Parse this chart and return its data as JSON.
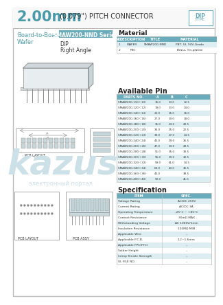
{
  "title_large": "2.00mm",
  "title_small": "(0.079\") PITCH CONNECTOR",
  "series_label": "SMAW200-NND Series",
  "application_line1": "Board-to-Board",
  "application_line2": "Wafer",
  "type1": "DIP",
  "type2": "Right Angle",
  "material_title": "Material",
  "material_headers": [
    "NO.",
    "DESCRIPTION",
    "TITLE",
    "MATERIAL"
  ],
  "material_rows": [
    [
      "1",
      "WAFER",
      "SMAW200-NND",
      "PBT, UL 94V-Grade"
    ],
    [
      "2",
      "PIN",
      "",
      "Brass, Tin-plated"
    ]
  ],
  "avail_title": "Available Pin",
  "avail_headers": [
    "PARTS NO.",
    "A",
    "B",
    "C"
  ],
  "avail_rows": [
    [
      "SMAW200-110 ( 10)",
      "15.0",
      "13.0",
      "12.5"
    ],
    [
      "SMAW200-120 ( 12)",
      "19.0",
      "13.0",
      "14.0"
    ],
    [
      "SMAW200-140 ( 14)",
      "23.0",
      "15.0",
      "16.0"
    ],
    [
      "SMAW200-160 ( 16)",
      "27.0",
      "19.0",
      "18.0"
    ],
    [
      "SMAW200-180 ( 18)",
      "31.0",
      "23.0",
      "20.5"
    ],
    [
      "SMAW200-200 ( 20)",
      "35.0",
      "25.0",
      "22.5"
    ],
    [
      "SMAW200-220 ( 22)",
      "39.0",
      "27.0",
      "24.5"
    ],
    [
      "SMAW200-240 ( 24)",
      "43.0",
      "29.0",
      "26.5"
    ],
    [
      "SMAW200-260 ( 26)",
      "47.0",
      "33.0",
      "28.5"
    ],
    [
      "SMAW200-280 ( 28)",
      "51.0",
      "35.0",
      "30.5"
    ],
    [
      "SMAW200-300 ( 30)",
      "55.0",
      "39.0",
      "32.5"
    ],
    [
      "SMAW200-320 ( 32)",
      "59.0",
      "41.0",
      "34.5"
    ],
    [
      "SMAW200-340 ( 34)",
      "63.0",
      "43.0",
      "36.5"
    ],
    [
      "SMAW200-360 ( 36)",
      "43.0",
      "",
      "38.5"
    ],
    [
      "SMAW200-400 ( 40)",
      "50.0",
      "",
      "41.5"
    ]
  ],
  "spec_title": "Specification",
  "spec_headers": [
    "ITEM",
    "SPEC."
  ],
  "spec_rows": [
    [
      "Voltage Rating",
      "AC/DC 250V"
    ],
    [
      "Current Rating",
      "AC/DC 3A"
    ],
    [
      "Operating Temperature",
      "-25°C ~ +85°C"
    ],
    [
      "Contact Resistance",
      "30mΩ MAX"
    ],
    [
      "Withstanding Voltage",
      "AC 1000V/1min"
    ],
    [
      "Insulation Resistance",
      "100MΩ MIN"
    ],
    [
      "Applicable Wire",
      "–"
    ],
    [
      "Applicable P.C.B.",
      "1.2~1.6mm"
    ],
    [
      "Applicable FPC(FFC)",
      "–"
    ],
    [
      "Solder Height",
      "–"
    ],
    [
      "Crimp Tensile Strength",
      "–"
    ],
    [
      "UL FILE NO.",
      "–"
    ]
  ],
  "bg_color": "#f5f5f5",
  "white": "#ffffff",
  "border_color": "#bbbbbb",
  "header_bg": "#6aacbc",
  "teal_dark": "#4a9aaa",
  "teal_title": "#4a9aaa",
  "title_blue": "#5599aa",
  "text_color": "#333333",
  "text_dark": "#222222",
  "table_row_alt": "#ddeef2",
  "watermark_color": "#cce0e8",
  "pcb_line": "#888888",
  "dip_border": "#6aacbc"
}
